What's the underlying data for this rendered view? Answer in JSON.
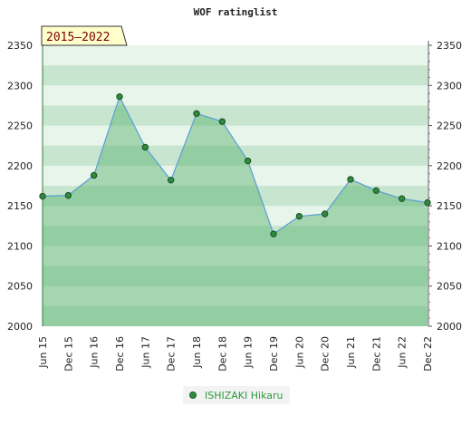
{
  "chart_data": {
    "type": "area",
    "title": "WOF ratinglist",
    "period": "2015–2022",
    "categories": [
      "Jun 15",
      "Dec 15",
      "Jun 16",
      "Dec 16",
      "Jun 17",
      "Dec 17",
      "Jun 18",
      "Dec 18",
      "Jun 19",
      "Dec 19",
      "Jun 20",
      "Dec 20",
      "Jun 21",
      "Dec 21",
      "Jun 22",
      "Dec 22"
    ],
    "series": [
      {
        "name": "ISHIZAKI Hikaru",
        "values": [
          2162,
          2163,
          2188,
          2286,
          2223,
          2182,
          2265,
          2255,
          2206,
          2115,
          2137,
          2140,
          2183,
          2169,
          2159,
          2154
        ]
      }
    ],
    "ylim": [
      2000,
      2350
    ],
    "yticks": [
      2000,
      2050,
      2100,
      2150,
      2200,
      2250,
      2300,
      2350
    ],
    "y_axis_both_sides": true,
    "legend_position": "bottom-center",
    "colors": {
      "line": "#5a9fd4",
      "marker": "#2e8b3e",
      "fill": "#55b06a",
      "band_dark": "#c7e5cf",
      "band_light": "#e8f5eb",
      "badge_bg": "#ffffcc",
      "badge_text": "#7a0000",
      "legend_text": "#2e9a3e"
    }
  }
}
